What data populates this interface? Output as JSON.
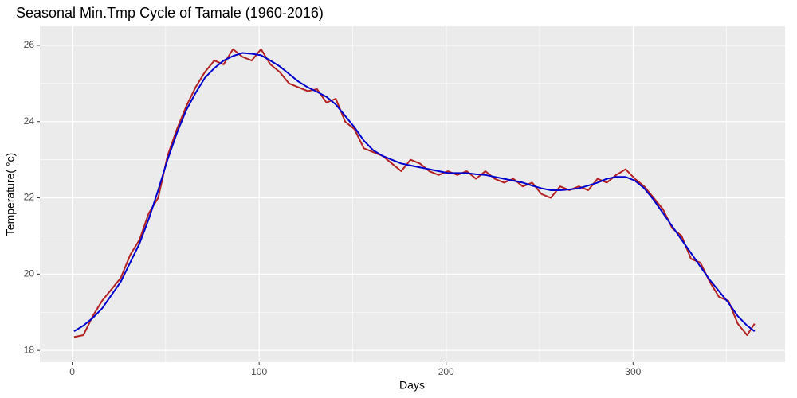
{
  "chart_data": {
    "type": "line",
    "title": "Seasonal Min.Tmp Cycle of Tamale (1960-2016)",
    "x_label": "Days",
    "y_label": "Temperature( °c)",
    "x": [
      1,
      6,
      11,
      16,
      21,
      26,
      31,
      36,
      41,
      46,
      51,
      56,
      61,
      66,
      71,
      76,
      81,
      86,
      91,
      96,
      101,
      106,
      111,
      116,
      121,
      126,
      131,
      136,
      141,
      146,
      151,
      156,
      161,
      166,
      171,
      176,
      181,
      186,
      191,
      196,
      201,
      206,
      211,
      216,
      221,
      226,
      231,
      236,
      241,
      246,
      251,
      256,
      261,
      266,
      271,
      276,
      281,
      286,
      291,
      296,
      301,
      306,
      311,
      316,
      321,
      326,
      331,
      336,
      341,
      346,
      351,
      356,
      361,
      365
    ],
    "series": [
      {
        "color": "#b22222",
        "width": 2,
        "values": [
          18.35,
          18.4,
          18.9,
          19.3,
          19.6,
          19.9,
          20.5,
          20.9,
          21.6,
          22.0,
          23.1,
          23.8,
          24.4,
          24.9,
          25.3,
          25.6,
          25.5,
          25.9,
          25.7,
          25.6,
          25.9,
          25.5,
          25.3,
          25.0,
          24.9,
          24.8,
          24.85,
          24.5,
          24.6,
          24.0,
          23.8,
          23.3,
          23.2,
          23.1,
          22.9,
          22.7,
          23.0,
          22.9,
          22.7,
          22.6,
          22.7,
          22.6,
          22.7,
          22.5,
          22.7,
          22.5,
          22.4,
          22.5,
          22.3,
          22.4,
          22.1,
          22.0,
          22.3,
          22.2,
          22.3,
          22.2,
          22.5,
          22.4,
          22.6,
          22.75,
          22.5,
          22.3,
          22.0,
          21.7,
          21.2,
          21.0,
          20.4,
          20.3,
          19.8,
          19.4,
          19.3,
          18.7,
          18.4,
          18.7
        ]
      },
      {
        "color": "#0000cd",
        "width": 2,
        "values": [
          18.5,
          18.65,
          18.85,
          19.1,
          19.45,
          19.8,
          20.3,
          20.8,
          21.45,
          22.2,
          23.0,
          23.7,
          24.3,
          24.75,
          25.15,
          25.4,
          25.6,
          25.72,
          25.8,
          25.78,
          25.74,
          25.6,
          25.45,
          25.25,
          25.05,
          24.9,
          24.78,
          24.65,
          24.45,
          24.15,
          23.85,
          23.5,
          23.25,
          23.1,
          23.0,
          22.9,
          22.85,
          22.8,
          22.75,
          22.7,
          22.65,
          22.65,
          22.65,
          22.62,
          22.6,
          22.55,
          22.5,
          22.45,
          22.4,
          22.32,
          22.25,
          22.2,
          22.2,
          22.22,
          22.25,
          22.32,
          22.4,
          22.5,
          22.55,
          22.55,
          22.45,
          22.25,
          21.95,
          21.6,
          21.25,
          20.9,
          20.55,
          20.2,
          19.85,
          19.55,
          19.25,
          18.9,
          18.65,
          18.5
        ]
      }
    ],
    "xlim": [
      -17.3,
      381.3
    ],
    "ylim": [
      17.69,
      26.5
    ],
    "xticks": [
      0,
      100,
      200,
      300
    ],
    "yticks": [
      18,
      20,
      22,
      24,
      26
    ],
    "x_minor_ticks": [
      50,
      150,
      250,
      350
    ],
    "y_minor_ticks": [
      19,
      21,
      23,
      25
    ],
    "grid": true,
    "panel_color": "#ebebeb"
  }
}
